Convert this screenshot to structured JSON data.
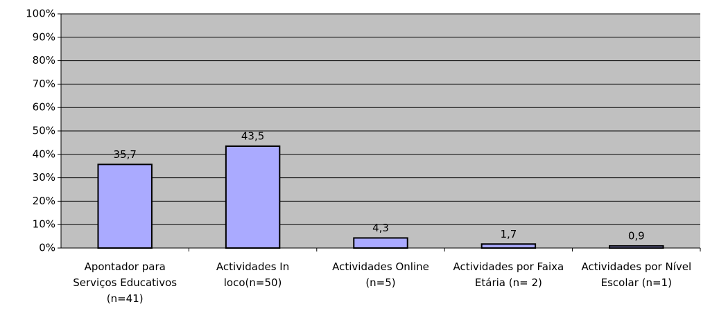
{
  "chart_data": {
    "type": "bar",
    "categories": [
      "Apontador para Serviços Educativos (n=41)",
      "Actividades In loco(n=50)",
      "Actividades Online (n=5)",
      "Actividades por Faixa Etária (n= 2)",
      "Actividades por Nível Escolar (n=1)"
    ],
    "values": [
      35.7,
      43.5,
      4.3,
      1.7,
      0.9
    ],
    "value_labels": [
      "35,7",
      "43,5",
      "4,3",
      "1,7",
      "0,9"
    ],
    "color": "#aaaaff",
    "ylim": [
      0,
      100
    ],
    "yticks": [
      {
        "value": 0,
        "label": "0%"
      },
      {
        "value": 10,
        "label": "10%"
      },
      {
        "value": 20,
        "label": "20%"
      },
      {
        "value": 30,
        "label": "30%"
      },
      {
        "value": 40,
        "label": "40%"
      },
      {
        "value": 50,
        "label": "50%"
      },
      {
        "value": 60,
        "label": "60%"
      },
      {
        "value": 70,
        "label": "70%"
      },
      {
        "value": 80,
        "label": "80%"
      },
      {
        "value": 90,
        "label": "90%"
      },
      {
        "value": 100,
        "label": "100%"
      }
    ],
    "grid": true
  }
}
